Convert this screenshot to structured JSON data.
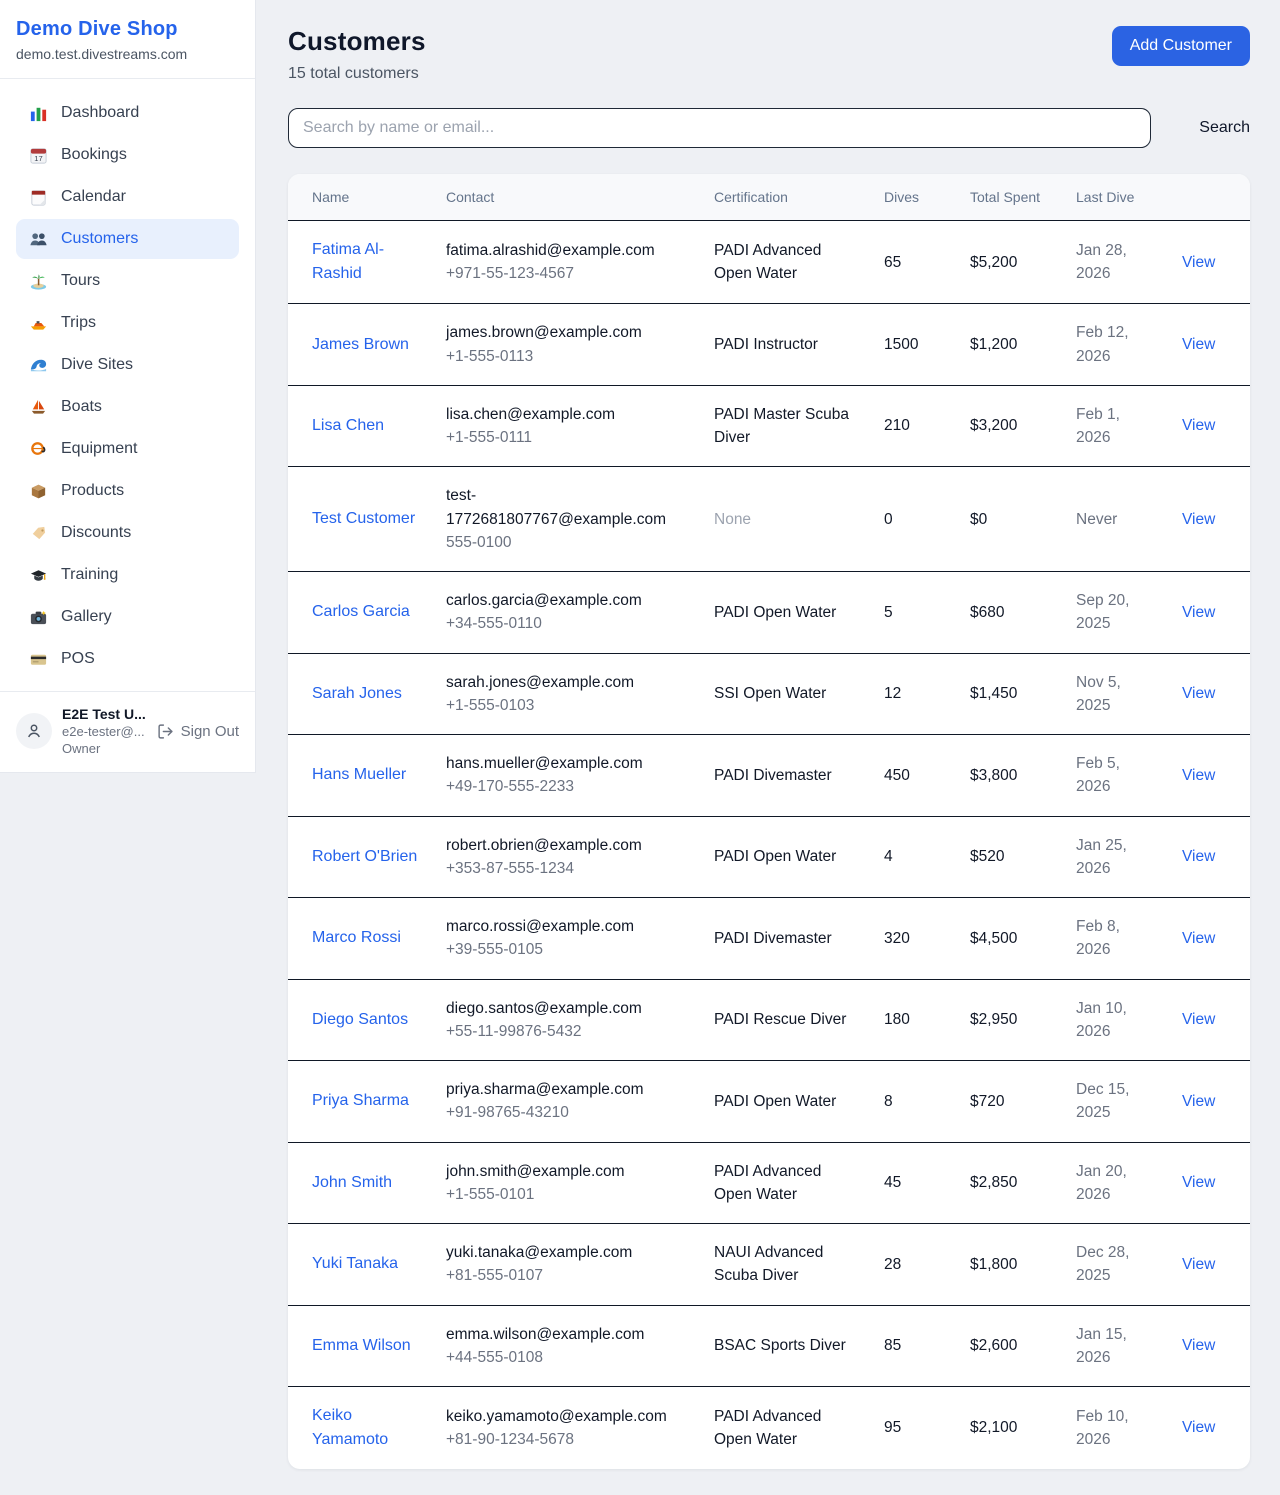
{
  "colors": {
    "accent": "#2563eb",
    "active_nav_bg": "#e8f0fd",
    "row_border": "#101826",
    "page_bg": "#eef0f4"
  },
  "sidebar": {
    "brand": {
      "title": "Demo Dive Shop",
      "domain": "demo.test.divestreams.com"
    },
    "items": [
      {
        "label": "Dashboard",
        "icon": "dashboard-icon",
        "active": false
      },
      {
        "label": "Bookings",
        "icon": "bookings-icon",
        "active": false
      },
      {
        "label": "Calendar",
        "icon": "calendar-icon",
        "active": false
      },
      {
        "label": "Customers",
        "icon": "customers-icon",
        "active": true
      },
      {
        "label": "Tours",
        "icon": "tours-icon",
        "active": false
      },
      {
        "label": "Trips",
        "icon": "trips-icon",
        "active": false
      },
      {
        "label": "Dive Sites",
        "icon": "dive-sites-icon",
        "active": false
      },
      {
        "label": "Boats",
        "icon": "boats-icon",
        "active": false
      },
      {
        "label": "Equipment",
        "icon": "equipment-icon",
        "active": false
      },
      {
        "label": "Products",
        "icon": "products-icon",
        "active": false
      },
      {
        "label": "Discounts",
        "icon": "discounts-icon",
        "active": false
      },
      {
        "label": "Training",
        "icon": "training-icon",
        "active": false
      },
      {
        "label": "Gallery",
        "icon": "gallery-icon",
        "active": false
      },
      {
        "label": "POS",
        "icon": "pos-icon",
        "active": false
      }
    ],
    "user": {
      "name": "E2E Test U...",
      "email": "e2e-tester@...",
      "role": "Owner",
      "sign_out_label": "Sign Out"
    }
  },
  "header": {
    "title": "Customers",
    "subtitle": "15 total customers",
    "add_button_label": "Add Customer"
  },
  "search": {
    "placeholder": "Search by name or email...",
    "button_label": "Search"
  },
  "table": {
    "columns": [
      "Name",
      "Contact",
      "Certification",
      "Dives",
      "Total Spent",
      "Last Dive",
      ""
    ],
    "view_label": "View",
    "rows": [
      {
        "name": "Fatima Al-Rashid",
        "email": "fatima.alrashid@example.com",
        "phone": "+971-55-123-4567",
        "certification": "PADI Advanced Open Water",
        "dives": "65",
        "total_spent": "$5,200",
        "last_dive": "Jan 28, 2026"
      },
      {
        "name": "James Brown",
        "email": "james.brown@example.com",
        "phone": "+1-555-0113",
        "certification": "PADI Instructor",
        "dives": "1500",
        "total_spent": "$1,200",
        "last_dive": "Feb 12, 2026"
      },
      {
        "name": "Lisa Chen",
        "email": "lisa.chen@example.com",
        "phone": "+1-555-0111",
        "certification": "PADI Master Scuba Diver",
        "dives": "210",
        "total_spent": "$3,200",
        "last_dive": "Feb 1, 2026"
      },
      {
        "name": "Test Customer",
        "email": "test-1772681807767@example.com",
        "phone": "555-0100",
        "certification": "None",
        "dives": "0",
        "total_spent": "$0",
        "last_dive": "Never"
      },
      {
        "name": "Carlos Garcia",
        "email": "carlos.garcia@example.com",
        "phone": "+34-555-0110",
        "certification": "PADI Open Water",
        "dives": "5",
        "total_spent": "$680",
        "last_dive": "Sep 20, 2025"
      },
      {
        "name": "Sarah Jones",
        "email": "sarah.jones@example.com",
        "phone": "+1-555-0103",
        "certification": "SSI Open Water",
        "dives": "12",
        "total_spent": "$1,450",
        "last_dive": "Nov 5, 2025"
      },
      {
        "name": "Hans Mueller",
        "email": "hans.mueller@example.com",
        "phone": "+49-170-555-2233",
        "certification": "PADI Divemaster",
        "dives": "450",
        "total_spent": "$3,800",
        "last_dive": "Feb 5, 2026"
      },
      {
        "name": "Robert O'Brien",
        "email": "robert.obrien@example.com",
        "phone": "+353-87-555-1234",
        "certification": "PADI Open Water",
        "dives": "4",
        "total_spent": "$520",
        "last_dive": "Jan 25, 2026"
      },
      {
        "name": "Marco Rossi",
        "email": "marco.rossi@example.com",
        "phone": "+39-555-0105",
        "certification": "PADI Divemaster",
        "dives": "320",
        "total_spent": "$4,500",
        "last_dive": "Feb 8, 2026"
      },
      {
        "name": "Diego Santos",
        "email": "diego.santos@example.com",
        "phone": "+55-11-99876-5432",
        "certification": "PADI Rescue Diver",
        "dives": "180",
        "total_spent": "$2,950",
        "last_dive": "Jan 10, 2026"
      },
      {
        "name": "Priya Sharma",
        "email": "priya.sharma@example.com",
        "phone": "+91-98765-43210",
        "certification": "PADI Open Water",
        "dives": "8",
        "total_spent": "$720",
        "last_dive": "Dec 15, 2025"
      },
      {
        "name": "John Smith",
        "email": "john.smith@example.com",
        "phone": "+1-555-0101",
        "certification": "PADI Advanced Open Water",
        "dives": "45",
        "total_spent": "$2,850",
        "last_dive": "Jan 20, 2026"
      },
      {
        "name": "Yuki Tanaka",
        "email": "yuki.tanaka@example.com",
        "phone": "+81-555-0107",
        "certification": "NAUI Advanced Scuba Diver",
        "dives": "28",
        "total_spent": "$1,800",
        "last_dive": "Dec 28, 2025"
      },
      {
        "name": "Emma Wilson",
        "email": "emma.wilson@example.com",
        "phone": "+44-555-0108",
        "certification": "BSAC Sports Diver",
        "dives": "85",
        "total_spent": "$2,600",
        "last_dive": "Jan 15, 2026"
      },
      {
        "name": "Keiko Yamamoto",
        "email": "keiko.yamamoto@example.com",
        "phone": "+81-90-1234-5678",
        "certification": "PADI Advanced Open Water",
        "dives": "95",
        "total_spent": "$2,100",
        "last_dive": "Feb 10, 2026"
      }
    ]
  }
}
